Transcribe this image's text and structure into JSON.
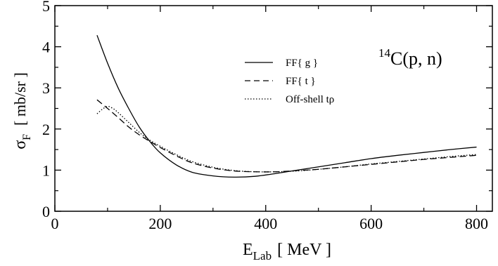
{
  "chart_data": {
    "type": "line",
    "xlabel": {
      "main": "E",
      "sub": "Lab",
      "unit": "[ MeV ]"
    },
    "ylabel": {
      "main": "σ",
      "sub": "F",
      "unit": "[ mb/sr ]"
    },
    "xlim": [
      0,
      830
    ],
    "ylim": [
      0,
      5
    ],
    "xticks": [
      0,
      200,
      400,
      600,
      800
    ],
    "yticks": [
      0,
      1,
      2,
      3,
      4,
      5
    ],
    "grid": false,
    "legend_position": "upper-center",
    "annotation": {
      "sup": "14",
      "text": "C(p, n)"
    },
    "series": [
      {
        "name": "FF{ g }",
        "style": "solid",
        "x": [
          80,
          100,
          120,
          140,
          160,
          180,
          200,
          230,
          260,
          300,
          340,
          380,
          420,
          460,
          500,
          550,
          600,
          650,
          700,
          750,
          800
        ],
        "y": [
          4.28,
          3.6,
          3.0,
          2.5,
          2.05,
          1.7,
          1.42,
          1.13,
          0.95,
          0.86,
          0.83,
          0.85,
          0.92,
          1.0,
          1.08,
          1.18,
          1.28,
          1.36,
          1.43,
          1.5,
          1.56
        ]
      },
      {
        "name": "FF{ t }",
        "style": "dashed",
        "x": [
          80,
          100,
          120,
          140,
          160,
          180,
          200,
          230,
          260,
          300,
          340,
          380,
          420,
          460,
          500,
          550,
          600,
          650,
          700,
          750,
          800
        ],
        "y": [
          2.71,
          2.5,
          2.28,
          2.05,
          1.86,
          1.7,
          1.55,
          1.35,
          1.18,
          1.05,
          0.98,
          0.96,
          0.96,
          0.99,
          1.02,
          1.08,
          1.14,
          1.2,
          1.26,
          1.31,
          1.36
        ]
      },
      {
        "name": "Off-shell tρ",
        "style": "dotted",
        "x": [
          80,
          90,
          100,
          110,
          120,
          140,
          160,
          180,
          200,
          230,
          260,
          300,
          340,
          380,
          420,
          460,
          500,
          550,
          600,
          650,
          700,
          750,
          800
        ],
        "y": [
          2.37,
          2.48,
          2.55,
          2.5,
          2.4,
          2.16,
          1.92,
          1.73,
          1.58,
          1.38,
          1.21,
          1.07,
          0.99,
          0.96,
          0.96,
          0.98,
          1.02,
          1.08,
          1.15,
          1.21,
          1.27,
          1.33,
          1.38
        ]
      }
    ]
  }
}
